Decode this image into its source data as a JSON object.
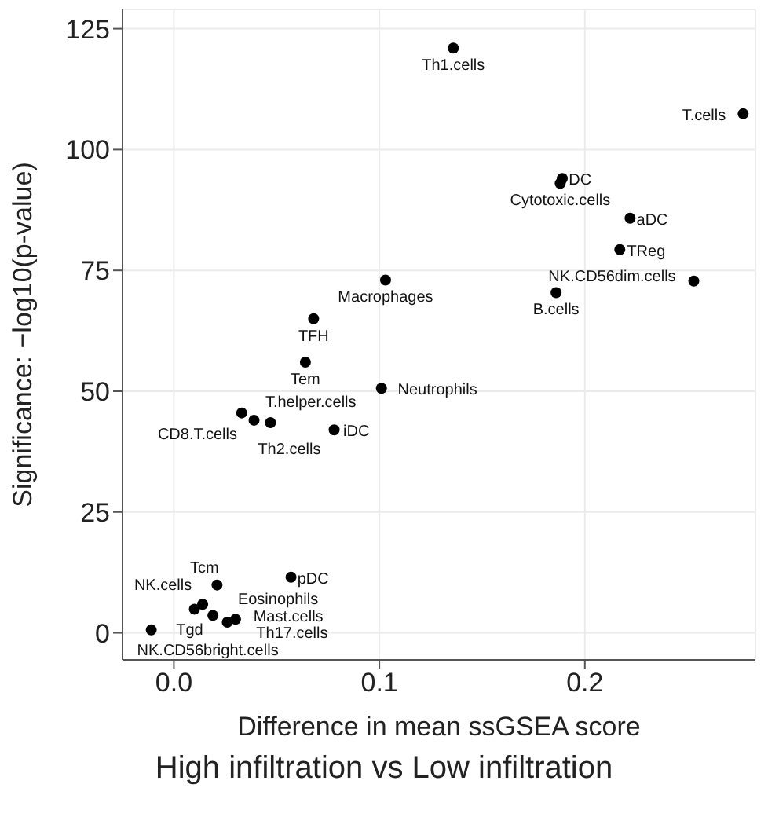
{
  "chart_data": {
    "type": "scatter",
    "title": "High infiltration vs Low infiltration",
    "xlabel": "Difference in mean ssGSEA score",
    "ylabel": "Significance: −log10(p-value)",
    "x": [
      0.136,
      0.277,
      0.188,
      0.189,
      0.222,
      0.217,
      0.253,
      0.186,
      0.103,
      0.068,
      0.064,
      0.101,
      0.078,
      0.033,
      0.039,
      0.047,
      0.021,
      0.057,
      -0.011,
      0.014,
      0.01,
      0.019,
      0.026,
      0.03
    ],
    "series": [
      {
        "color": "#000000",
        "values": [
          121,
          107.4,
          93,
          94,
          85.8,
          79.3,
          72.8,
          70.4,
          73,
          65,
          56,
          50.6,
          42,
          45.5,
          44,
          43.5,
          9.9,
          11.5,
          0.6,
          5.9,
          4.9,
          3.6,
          2.2,
          2.8
        ]
      }
    ],
    "xlim": [
      -0.025,
      0.283
    ],
    "ylim": [
      -5.6,
      129
    ],
    "xticks": [
      {
        "value": 0,
        "label": "0.0"
      },
      0.1,
      0.2
    ],
    "yticks": [
      0,
      25,
      50,
      75,
      100,
      125
    ],
    "grid": true,
    "marker": "circle",
    "annotations": [
      {
        "text": "Th1.cells",
        "x": 0.136,
        "y": 121
      },
      {
        "text": "T.cells",
        "x": 0.277,
        "y": 107.4
      },
      {
        "text": "Cytotoxic.cells",
        "x": 0.188,
        "y": 93
      },
      {
        "text": "DC",
        "x": 0.189,
        "y": 94
      },
      {
        "text": "aDC",
        "x": 0.222,
        "y": 85.8
      },
      {
        "text": "TReg",
        "x": 0.217,
        "y": 79.3
      },
      {
        "text": "NK.CD56dim.cells",
        "x": 0.253,
        "y": 72.8
      },
      {
        "text": "B.cells",
        "x": 0.186,
        "y": 70.4
      },
      {
        "text": "Macrophages",
        "x": 0.103,
        "y": 73
      },
      {
        "text": "TFH",
        "x": 0.068,
        "y": 65
      },
      {
        "text": "Tem",
        "x": 0.064,
        "y": 56
      },
      {
        "text": "Neutrophils",
        "x": 0.101,
        "y": 50.6
      },
      {
        "text": "iDC",
        "x": 0.078,
        "y": 42
      },
      {
        "text": "T.helper.cells",
        "x": 0.033,
        "y": 45.5
      },
      {
        "text": "CD8.T.cells",
        "x": 0.039,
        "y": 44
      },
      {
        "text": "Th2.cells",
        "x": 0.047,
        "y": 43.5
      },
      {
        "text": "Tcm",
        "x": 0.021,
        "y": 9.9
      },
      {
        "text": "pDC",
        "x": 0.057,
        "y": 11.5
      },
      {
        "text": "NK.CD56bright.cells",
        "x": -0.011,
        "y": 0.6
      },
      {
        "text": "Eosinophils",
        "x": 0.014,
        "y": 5.9
      },
      {
        "text": "NK.cells",
        "x": 0.01,
        "y": 4.9
      },
      {
        "text": "Mast.cells",
        "x": 0.019,
        "y": 3.6
      },
      {
        "text": "Tgd",
        "x": 0.026,
        "y": 2.2
      },
      {
        "text": "Th17.cells",
        "x": 0.03,
        "y": 2.8
      }
    ]
  }
}
